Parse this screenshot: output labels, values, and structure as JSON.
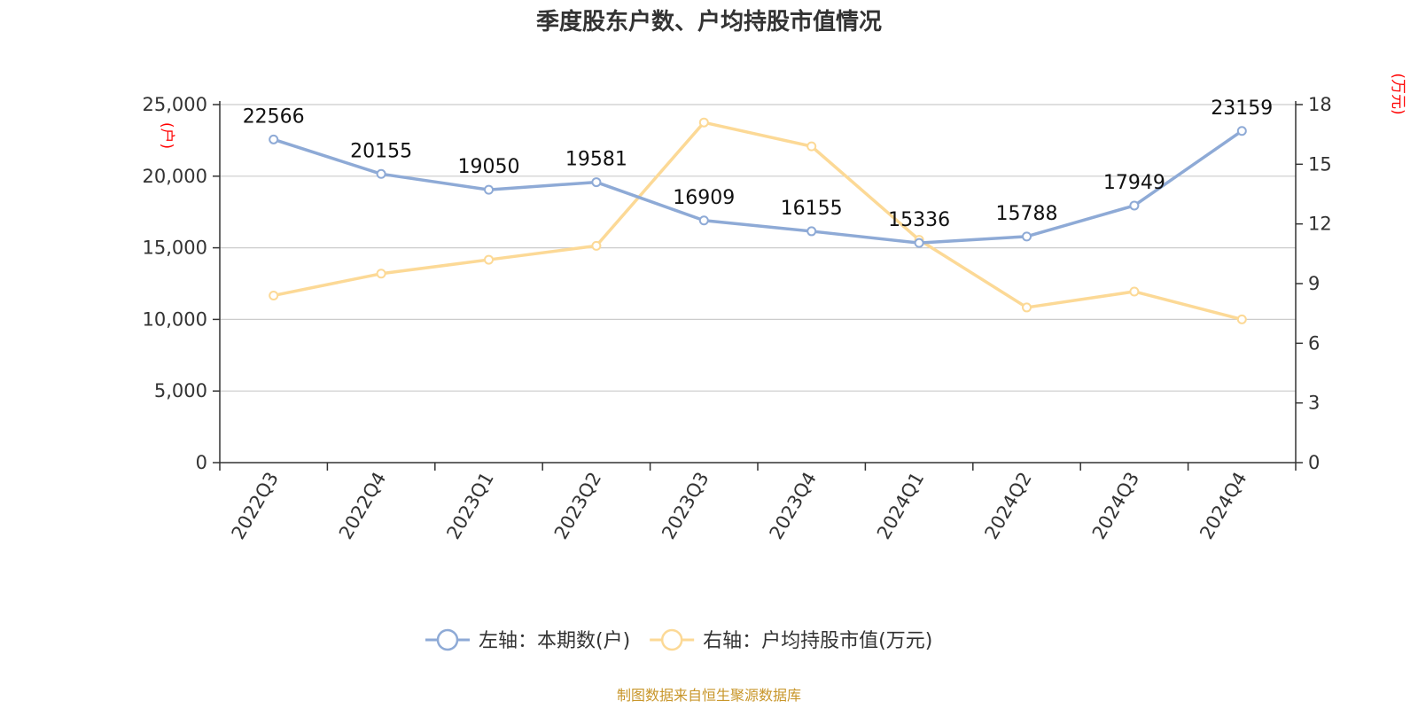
{
  "chart_data": {
    "type": "line",
    "title": "季度股东户数、户均持股市值情况",
    "categories": [
      "2022Q3",
      "2022Q4",
      "2023Q1",
      "2023Q2",
      "2023Q3",
      "2023Q4",
      "2024Q1",
      "2024Q2",
      "2024Q3",
      "2024Q4"
    ],
    "left_axis": {
      "unit": "(户)",
      "range": [
        0,
        25000
      ],
      "ticks": [
        {
          "value": 0,
          "label": "0"
        },
        {
          "value": 5000,
          "label": "5,000"
        },
        {
          "value": 10000,
          "label": "10,000"
        },
        {
          "value": 15000,
          "label": "15,000"
        },
        {
          "value": 20000,
          "label": "20,000"
        },
        {
          "value": 25000,
          "label": "25,000"
        }
      ]
    },
    "right_axis": {
      "unit": "(万元)",
      "range": [
        0,
        18
      ],
      "ticks": [
        {
          "value": 0,
          "label": "0"
        },
        {
          "value": 3,
          "label": "3"
        },
        {
          "value": 6,
          "label": "6"
        },
        {
          "value": 9,
          "label": "9"
        },
        {
          "value": 12,
          "label": "12"
        },
        {
          "value": 15,
          "label": "15"
        },
        {
          "value": 18,
          "label": "18"
        }
      ]
    },
    "series": [
      {
        "name": "左轴：本期数(户)",
        "axis": "left",
        "color": "#8eaad6",
        "values": [
          22566,
          20155,
          19050,
          19581,
          16909,
          16155,
          15336,
          15788,
          17949,
          23159
        ],
        "labels": [
          "22566",
          "20155",
          "19050",
          "19581",
          "16909",
          "16155",
          "15336",
          "15788",
          "17949",
          "23159"
        ]
      },
      {
        "name": "右轴：户均持股市值(万元)",
        "axis": "right",
        "color": "#fcd996",
        "values": [
          8.4,
          9.5,
          10.2,
          10.9,
          17.1,
          15.9,
          11.2,
          7.8,
          8.6,
          7.2
        ]
      }
    ],
    "grid": true,
    "legend_position": "bottom-center"
  },
  "source": "制图数据来自恒生聚源数据库"
}
